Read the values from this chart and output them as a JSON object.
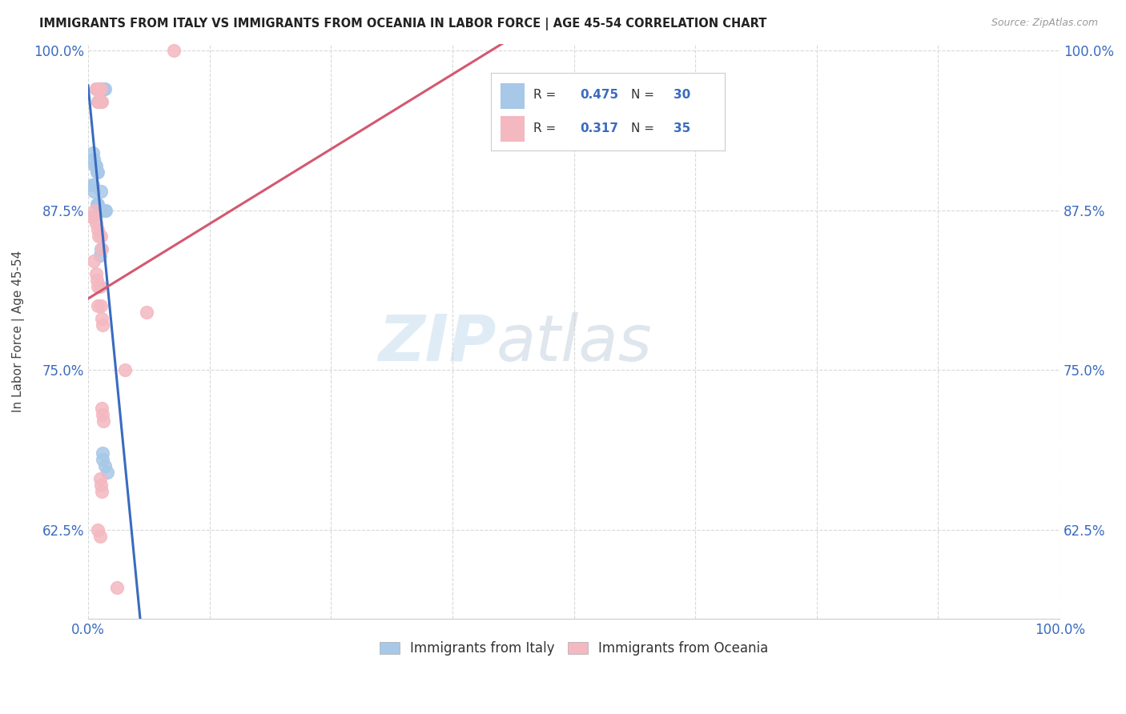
{
  "title": "IMMIGRANTS FROM ITALY VS IMMIGRANTS FROM OCEANIA IN LABOR FORCE | AGE 45-54 CORRELATION CHART",
  "source": "Source: ZipAtlas.com",
  "ylabel": "In Labor Force | Age 45-54",
  "xlim": [
    0.0,
    1.0
  ],
  "ylim": [
    0.555,
    1.005
  ],
  "xticks": [
    0.0,
    0.125,
    0.25,
    0.375,
    0.5,
    0.625,
    0.75,
    0.875,
    1.0
  ],
  "xtick_labels": [
    "0.0%",
    "",
    "",
    "",
    "",
    "",
    "",
    "",
    "100.0%"
  ],
  "ytick_labels": [
    "62.5%",
    "75.0%",
    "87.5%",
    "100.0%"
  ],
  "yticks": [
    0.625,
    0.75,
    0.875,
    1.0
  ],
  "italy_color": "#a8c8e8",
  "oceania_color": "#f4b8c0",
  "italy_line_color": "#3a6bbf",
  "oceania_line_color": "#d45870",
  "R_italy": 0.475,
  "N_italy": 30,
  "R_oceania": 0.317,
  "N_oceania": 35,
  "legend_label_italy": "Immigrants from Italy",
  "legend_label_oceania": "Immigrants from Oceania",
  "watermark_zip": "ZIP",
  "watermark_atlas": "atlas",
  "italy_x": [
    0.008,
    0.01,
    0.012,
    0.013,
    0.014,
    0.015,
    0.016,
    0.017,
    0.005,
    0.006,
    0.007,
    0.008,
    0.009,
    0.01,
    0.004,
    0.005,
    0.006,
    0.009,
    0.01,
    0.013,
    0.014,
    0.015,
    0.017,
    0.018,
    0.012,
    0.013,
    0.015,
    0.015,
    0.017,
    0.02
  ],
  "italy_y": [
    0.97,
    0.96,
    0.97,
    0.96,
    0.97,
    0.97,
    0.97,
    0.97,
    0.92,
    0.915,
    0.91,
    0.91,
    0.905,
    0.905,
    0.895,
    0.895,
    0.89,
    0.88,
    0.88,
    0.89,
    0.875,
    0.875,
    0.875,
    0.875,
    0.84,
    0.845,
    0.685,
    0.68,
    0.675,
    0.67
  ],
  "oceania_x": [
    0.008,
    0.01,
    0.011,
    0.012,
    0.013,
    0.014,
    0.004,
    0.005,
    0.007,
    0.008,
    0.01,
    0.011,
    0.013,
    0.014,
    0.006,
    0.008,
    0.009,
    0.01,
    0.012,
    0.01,
    0.013,
    0.014,
    0.015,
    0.014,
    0.015,
    0.016,
    0.012,
    0.013,
    0.014,
    0.01,
    0.012,
    0.038,
    0.06,
    0.088,
    0.03
  ],
  "oceania_y": [
    0.97,
    0.96,
    0.97,
    0.96,
    0.97,
    0.96,
    0.87,
    0.87,
    0.875,
    0.865,
    0.86,
    0.855,
    0.855,
    0.845,
    0.835,
    0.825,
    0.82,
    0.815,
    0.815,
    0.8,
    0.8,
    0.79,
    0.785,
    0.72,
    0.715,
    0.71,
    0.665,
    0.66,
    0.655,
    0.625,
    0.62,
    0.75,
    0.795,
    1.0,
    0.58
  ],
  "italy_line_x0": 0.0,
  "italy_line_x1": 1.0,
  "oceania_line_x0": 0.0,
  "oceania_line_x1": 1.0
}
